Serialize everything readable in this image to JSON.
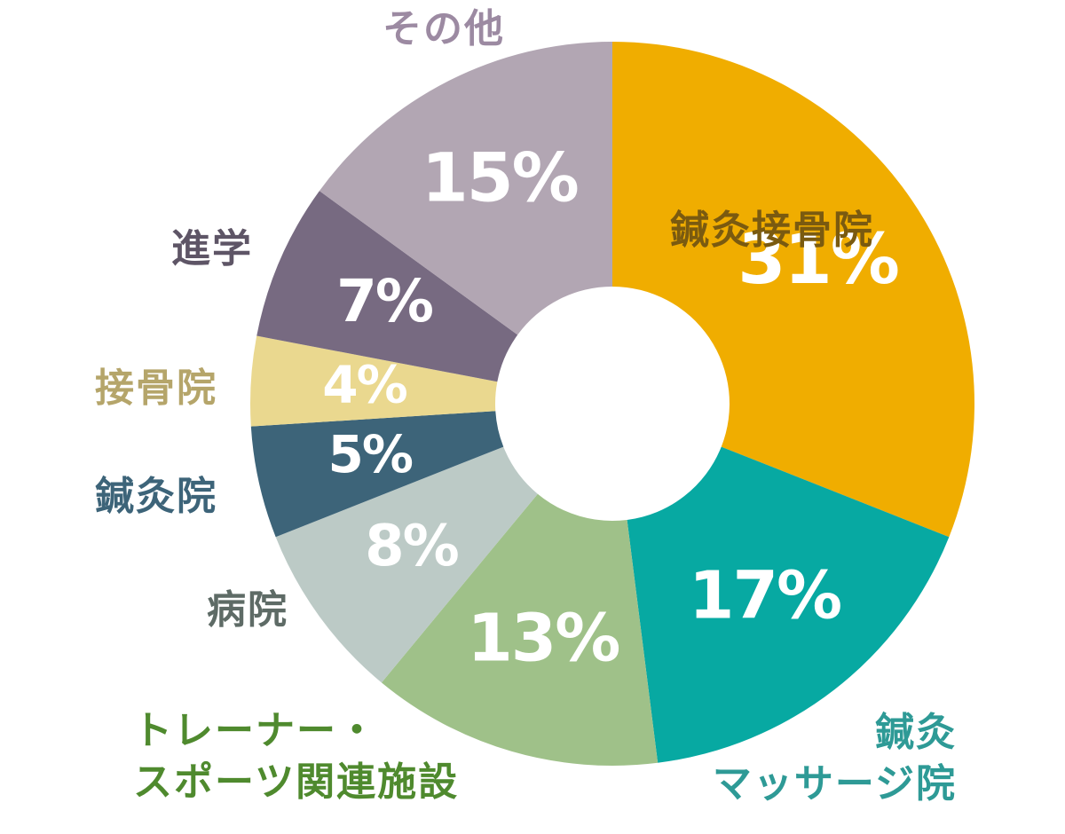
{
  "chart_data": {
    "type": "pie",
    "title": "",
    "categories": [
      "鍼灸接骨院",
      "鍼灸マッサージ院",
      "トレーナー・スポーツ関連施設",
      "病院",
      "鍼灸院",
      "接骨院",
      "進学",
      "その他"
    ],
    "values": [
      31,
      17,
      13,
      8,
      5,
      4,
      7,
      15
    ],
    "value_labels": [
      "31%",
      "17%",
      "13%",
      "8%",
      "5%",
      "4%",
      "7%",
      "15%"
    ],
    "label_lines": [
      [
        "鍼灸接骨院"
      ],
      [
        "鍼灸",
        "マッサージ院"
      ],
      [
        "トレーナー・",
        "スポーツ関連施設"
      ],
      [
        "病院"
      ],
      [
        "鍼灸院"
      ],
      [
        "接骨院"
      ],
      [
        "進学"
      ],
      [
        "その他"
      ]
    ],
    "colors": [
      "#f0ad00",
      "#07a9a2",
      "#9fc189",
      "#bccac6",
      "#3d6479",
      "#ead88f",
      "#776a81",
      "#b2a6b3"
    ],
    "label_colors": [
      "#7a5a10",
      "#2e9a96",
      "#4f8a2e",
      "#5e6b66",
      "#3d6479",
      "#b5a56a",
      "#5e5566",
      "#9c8aa2"
    ],
    "legend": "none",
    "donut": true
  }
}
